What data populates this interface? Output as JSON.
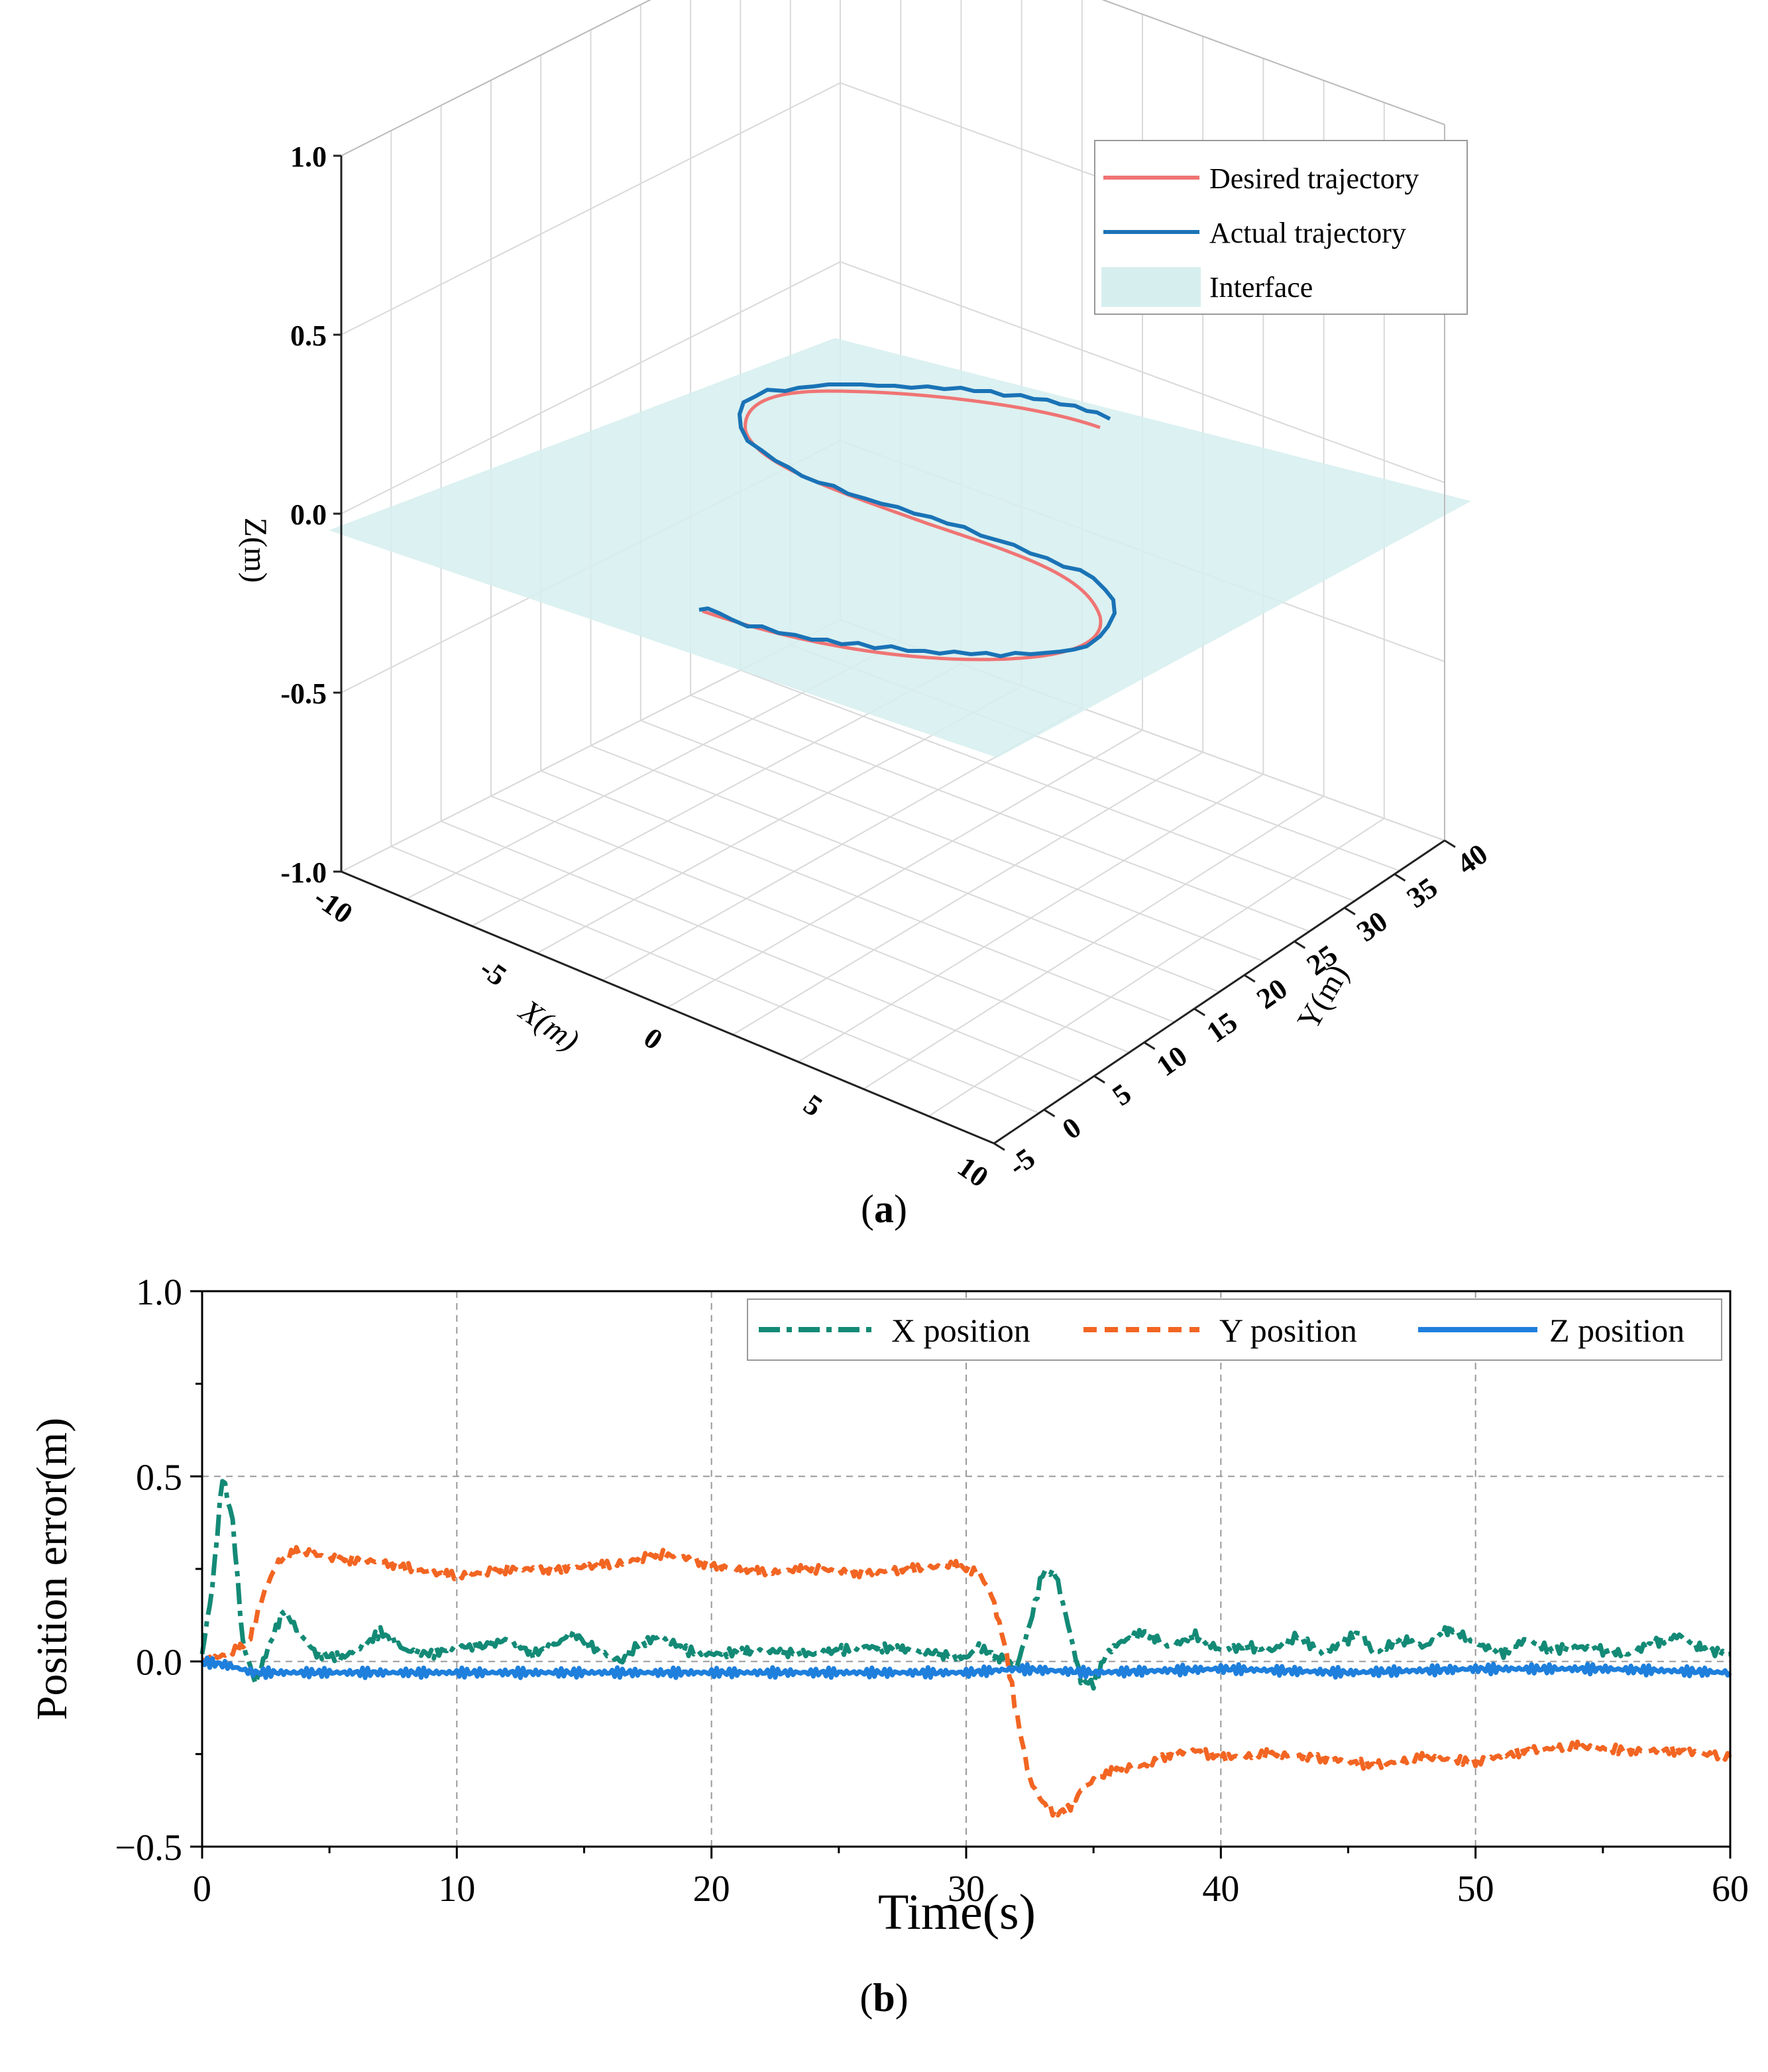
{
  "figure_a": {
    "caption_letter": "a",
    "chart_data": {
      "type": "line3d",
      "xlabel": "X(m)",
      "ylabel": "Y(m)",
      "zlabel": "Z(m)",
      "xlim": [
        -10,
        10
      ],
      "ylim": [
        -5,
        40
      ],
      "zlim": [
        -1.0,
        1.0
      ],
      "x_ticks": [
        "-10",
        "-5",
        "0",
        "5",
        "10"
      ],
      "y_ticks": [
        "-5",
        "0",
        "5",
        "10",
        "15",
        "20",
        "25",
        "30",
        "35",
        "40"
      ],
      "z_ticks": [
        "-1.0",
        "-0.5",
        "0.0",
        "0.5",
        "1.0"
      ],
      "interface_z": 0.0,
      "legend": [
        "Desired trajectory",
        "Actual trajectory",
        "Interface"
      ],
      "series": [
        {
          "name": "Desired trajectory",
          "color": "#f07474"
        },
        {
          "name": "Actual trajectory",
          "color": "#1f77b4"
        }
      ],
      "interface_color": "#d6efee"
    }
  },
  "figure_b": {
    "caption_letter": "b",
    "chart_data": {
      "type": "line",
      "xlabel": "Time(s)",
      "ylabel": "Position error(m)",
      "xlim": [
        0,
        60
      ],
      "ylim": [
        -0.5,
        1.0
      ],
      "x_ticks": [
        "0",
        "10",
        "20",
        "30",
        "40",
        "50",
        "60"
      ],
      "y_ticks": [
        "−0.5",
        "0.0",
        "0.5",
        "1.0"
      ],
      "series": [
        {
          "name": "X position",
          "color": "#138a76",
          "style": "dashdot",
          "points": [
            [
              0,
              0.02
            ],
            [
              0.4,
              0.2
            ],
            [
              0.8,
              0.5
            ],
            [
              1.2,
              0.38
            ],
            [
              1.6,
              0.05
            ],
            [
              2.1,
              -0.06
            ],
            [
              2.5,
              0.02
            ],
            [
              3.2,
              0.14
            ],
            [
              3.8,
              0.08
            ],
            [
              4.5,
              0.02
            ],
            [
              5.5,
              0.01
            ],
            [
              6.5,
              0.05
            ],
            [
              7,
              0.08
            ],
            [
              8,
              0.03
            ],
            [
              9,
              0.02
            ],
            [
              10,
              0.04
            ],
            [
              11,
              0.04
            ],
            [
              12,
              0.06
            ],
            [
              13,
              0.02
            ],
            [
              14,
              0.05
            ],
            [
              14.5,
              0.08
            ],
            [
              15.5,
              0.03
            ],
            [
              16.5,
              0.0
            ],
            [
              17,
              0.04
            ],
            [
              18,
              0.07
            ],
            [
              19,
              0.03
            ],
            [
              20,
              0.02
            ],
            [
              22,
              0.03
            ],
            [
              24,
              0.02
            ],
            [
              26,
              0.04
            ],
            [
              28,
              0.03
            ],
            [
              30,
              0.01
            ],
            [
              30.5,
              0.04
            ],
            [
              31,
              0.02
            ],
            [
              32,
              -0.01
            ],
            [
              32.5,
              0.1
            ],
            [
              33,
              0.24
            ],
            [
              33.5,
              0.24
            ],
            [
              34,
              0.1
            ],
            [
              34.5,
              -0.05
            ],
            [
              35,
              -0.06
            ],
            [
              35.5,
              0.02
            ],
            [
              36,
              0.05
            ],
            [
              37,
              0.08
            ],
            [
              38,
              0.04
            ],
            [
              39,
              0.07
            ],
            [
              40,
              0.03
            ],
            [
              41,
              0.04
            ],
            [
              42,
              0.03
            ],
            [
              43,
              0.07
            ],
            [
              44,
              0.02
            ],
            [
              45,
              0.06
            ],
            [
              45.5,
              0.08
            ],
            [
              46,
              0.02
            ],
            [
              47,
              0.06
            ],
            [
              48,
              0.04
            ],
            [
              49,
              0.09
            ],
            [
              50,
              0.05
            ],
            [
              51,
              0.02
            ],
            [
              52,
              0.06
            ],
            [
              53,
              0.03
            ],
            [
              54,
              0.04
            ],
            [
              55,
              0.03
            ],
            [
              56,
              0.02
            ],
            [
              57,
              0.05
            ],
            [
              58,
              0.07
            ],
            [
              59,
              0.03
            ],
            [
              60,
              0.02
            ]
          ]
        },
        {
          "name": "Y position",
          "color": "#f26522",
          "style": "dashed",
          "points": [
            [
              0,
              0.0
            ],
            [
              1,
              0.02
            ],
            [
              1.8,
              0.05
            ],
            [
              2.5,
              0.2
            ],
            [
              3,
              0.27
            ],
            [
              3.8,
              0.3
            ],
            [
              5,
              0.28
            ],
            [
              7,
              0.27
            ],
            [
              9,
              0.24
            ],
            [
              10,
              0.23
            ],
            [
              12,
              0.25
            ],
            [
              14,
              0.25
            ],
            [
              16,
              0.26
            ],
            [
              18,
              0.29
            ],
            [
              19,
              0.28
            ],
            [
              20,
              0.26
            ],
            [
              22,
              0.24
            ],
            [
              24,
              0.25
            ],
            [
              26,
              0.24
            ],
            [
              28,
              0.25
            ],
            [
              29.5,
              0.26
            ],
            [
              30.5,
              0.24
            ],
            [
              31,
              0.18
            ],
            [
              31.5,
              0.05
            ],
            [
              32,
              -0.15
            ],
            [
              32.5,
              -0.32
            ],
            [
              33,
              -0.38
            ],
            [
              33.5,
              -0.41
            ],
            [
              34,
              -0.4
            ],
            [
              34.5,
              -0.35
            ],
            [
              35,
              -0.32
            ],
            [
              36,
              -0.29
            ],
            [
              37,
              -0.28
            ],
            [
              38,
              -0.25
            ],
            [
              39,
              -0.24
            ],
            [
              40,
              -0.26
            ],
            [
              42,
              -0.25
            ],
            [
              44,
              -0.26
            ],
            [
              46,
              -0.28
            ],
            [
              48,
              -0.26
            ],
            [
              50,
              -0.27
            ],
            [
              52,
              -0.24
            ],
            [
              54,
              -0.23
            ],
            [
              56,
              -0.24
            ],
            [
              58,
              -0.24
            ],
            [
              60,
              -0.26
            ]
          ]
        },
        {
          "name": "Z position",
          "color": "#1e7fdc",
          "style": "solid",
          "points": [
            [
              0,
              0.0
            ],
            [
              1,
              -0.01
            ],
            [
              2,
              -0.03
            ],
            [
              5,
              -0.03
            ],
            [
              10,
              -0.03
            ],
            [
              15,
              -0.03
            ],
            [
              20,
              -0.03
            ],
            [
              25,
              -0.03
            ],
            [
              30,
              -0.03
            ],
            [
              32,
              -0.02
            ],
            [
              35,
              -0.03
            ],
            [
              40,
              -0.02
            ],
            [
              45,
              -0.03
            ],
            [
              50,
              -0.02
            ],
            [
              55,
              -0.02
            ],
            [
              60,
              -0.03
            ]
          ]
        }
      ]
    }
  }
}
